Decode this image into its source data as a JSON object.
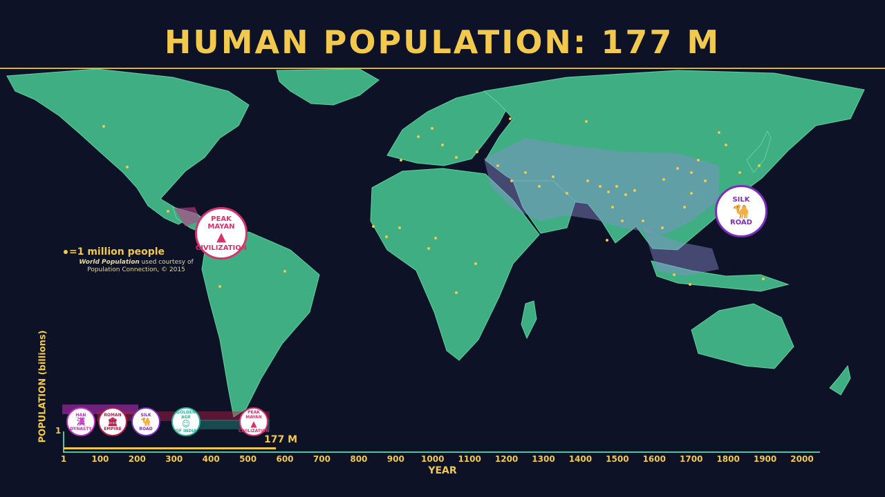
{
  "title": "HUMAN POPULATION: 177 M",
  "legend": {
    "text": "=1 million people",
    "credit_italic": "World Population",
    "credit_rest": " used courtesy of Population Connection, © 2015"
  },
  "map_badges": {
    "peak_mayan": {
      "top": "PEAK MAYAN",
      "bottom": "CIVILIZATION",
      "color": "#d6336c"
    },
    "silk_road": {
      "top": "SILK",
      "bottom": "ROAD",
      "color": "#7b2cbf"
    }
  },
  "timeline": {
    "ylabel": "POPULATION (billions)",
    "ytick": "1",
    "xlabel": "YEAR",
    "xticks": [
      "1",
      "100",
      "200",
      "300",
      "400",
      "500",
      "600",
      "700",
      "800",
      "900",
      "1000",
      "1100",
      "1200",
      "1300",
      "1400",
      "1500",
      "1600",
      "1700",
      "1800",
      "1900",
      "2000"
    ],
    "current_year": 575,
    "current_value_label": "177 M",
    "badges": [
      {
        "top": "HAN",
        "glyph": "漢",
        "bottom": "DYNASTY",
        "color": "#c02fbf"
      },
      {
        "top": "ROMAN",
        "glyph": "🏛",
        "bottom": "EMPIRE",
        "color": "#b5204a"
      },
      {
        "top": "SILK",
        "glyph": "🐪",
        "bottom": "ROAD",
        "color": "#7b2cbf"
      },
      {
        "top": "GOLDEN AGE",
        "glyph": "☺",
        "bottom": "OF INDIA",
        "color": "#2bb59a"
      },
      {
        "top": "PEAK MAYAN",
        "glyph": "▲",
        "bottom": "CIVILIZATION",
        "color": "#d6336c"
      }
    ]
  }
}
